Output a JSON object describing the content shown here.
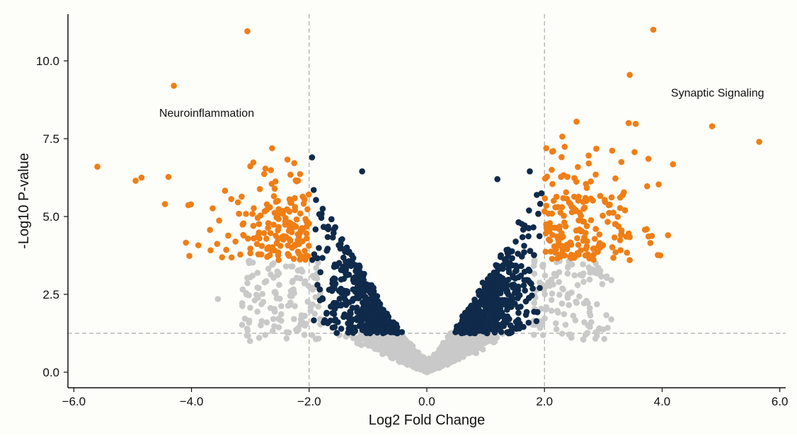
{
  "chart_data": {
    "type": "scatter",
    "title": "",
    "xlabel": "Log2 Fold Change",
    "ylabel": "-Log10 P-value",
    "xlim": [
      -6.1,
      6.1
    ],
    "ylim": [
      -0.5,
      11.5
    ],
    "x_ticks": [
      -6.0,
      -4.0,
      -2.0,
      0.0,
      2.0,
      4.0,
      6.0
    ],
    "x_tick_labels": [
      "−6.0",
      "−4.0",
      "−2.0",
      "0.0",
      "2.0",
      "4.0",
      "6.0"
    ],
    "y_ticks": [
      0.0,
      2.5,
      5.0,
      7.5,
      10.0
    ],
    "y_tick_labels": [
      "0.0",
      "2.5",
      "5.0",
      "7.5",
      "10.0"
    ],
    "thresholds": {
      "log2fc": [
        -2.0,
        2.0
      ],
      "neg_log10_p": 1.25
    },
    "grid": false,
    "colors": {
      "significant": "#f07e15",
      "fc_only": "#c9c9c9",
      "p_only": "#0f2a4a",
      "not_significant": "#c9c9c9",
      "threshold_line": "#aaaaaa"
    },
    "annotations": [
      {
        "text": "Neuroinflammation",
        "x": -4.55,
        "y": 8.2
      },
      {
        "text": "Synaptic Signaling",
        "x": 4.15,
        "y": 8.85
      }
    ],
    "highlight_points": [
      {
        "x": -3.05,
        "y": 10.95,
        "group": "significant"
      },
      {
        "x": 3.85,
        "y": 11.0,
        "group": "significant"
      },
      {
        "x": -5.6,
        "y": 6.6,
        "group": "significant"
      },
      {
        "x": 5.65,
        "y": 7.4,
        "group": "significant"
      },
      {
        "x": 4.85,
        "y": 7.9,
        "group": "significant"
      },
      {
        "x": -4.3,
        "y": 9.2,
        "group": "significant"
      },
      {
        "x": 3.45,
        "y": 9.55,
        "group": "significant"
      },
      {
        "x": -4.95,
        "y": 6.15,
        "group": "significant"
      },
      {
        "x": -4.85,
        "y": 6.25,
        "group": "significant"
      },
      {
        "x": -4.45,
        "y": 5.4,
        "group": "significant"
      },
      {
        "x": -1.95,
        "y": 6.9,
        "group": "p_only"
      },
      {
        "x": 1.75,
        "y": 6.45,
        "group": "p_only"
      },
      {
        "x": -1.1,
        "y": 6.45,
        "group": "p_only"
      },
      {
        "x": 1.2,
        "y": 6.2,
        "group": "p_only"
      },
      {
        "x": -3.55,
        "y": 2.35,
        "group": "fc_only"
      },
      {
        "x": 3.45,
        "y": 3.6,
        "group": "significant"
      },
      {
        "x": 3.8,
        "y": 4.15,
        "group": "significant"
      },
      {
        "x": 4.1,
        "y": 4.4,
        "group": "significant"
      }
    ],
    "background_note_points": "Remaining points are drawn procedurally to mirror the volcano distribution."
  }
}
